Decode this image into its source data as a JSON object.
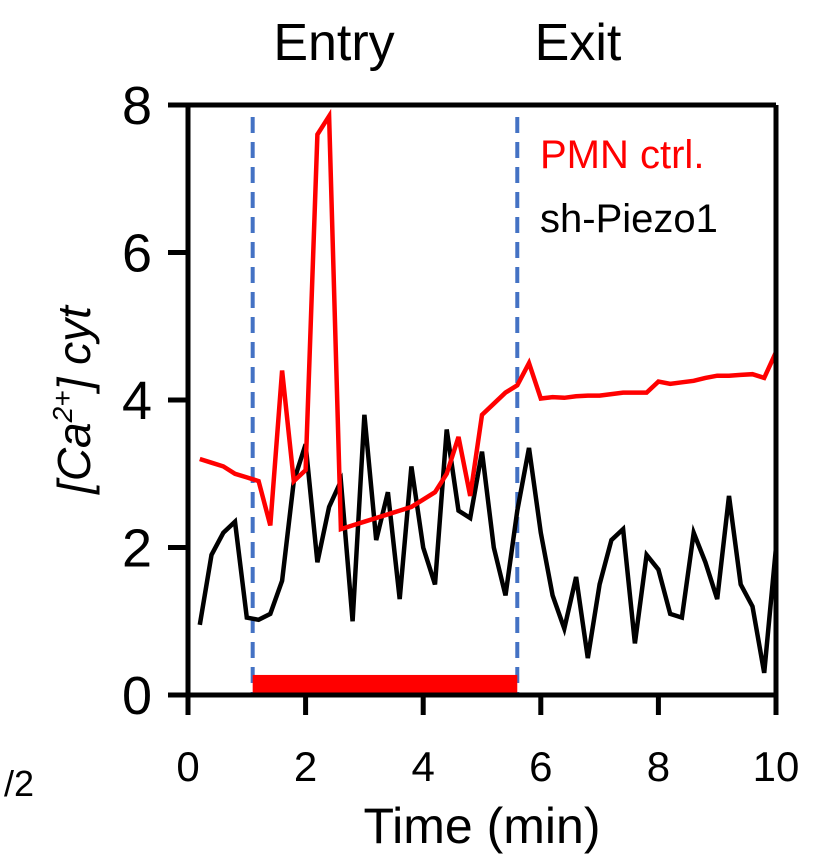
{
  "chart_data": {
    "type": "line",
    "xlabel": "Time (min)",
    "ylabel": {
      "open": "[Ca",
      "sup": "2+",
      "close": "] cyt"
    },
    "xlim": [
      0,
      10
    ],
    "ylim": [
      0,
      8
    ],
    "x_ticks": [
      "0",
      "2",
      "4",
      "6",
      "8",
      "10"
    ],
    "y_ticks": [
      "0",
      "2",
      "4",
      "6",
      "8"
    ],
    "grid": false,
    "legend_position": "top-right",
    "annotations": {
      "entry": {
        "label": "Entry",
        "x": 1.1
      },
      "exit": {
        "label": "Exit",
        "x": 5.6
      }
    },
    "highlight_bar": {
      "from": 1.1,
      "to": 5.6,
      "y": 0.15,
      "color": "#ff0000"
    },
    "partial_text": "/2",
    "series": [
      {
        "name": "PMN ctrl.",
        "color": "#ff0000",
        "x": [
          0.2,
          0.4,
          0.6,
          0.8,
          1.0,
          1.2,
          1.4,
          1.6,
          1.8,
          2.0,
          2.2,
          2.4,
          2.6,
          2.8,
          3.0,
          3.2,
          3.4,
          3.6,
          3.8,
          4.0,
          4.2,
          4.4,
          4.6,
          4.8,
          5.0,
          5.2,
          5.4,
          5.6,
          5.8,
          6.0,
          6.2,
          6.4,
          6.6,
          6.8,
          7.0,
          7.2,
          7.4,
          7.6,
          7.8,
          8.0,
          8.2,
          8.4,
          8.6,
          8.8,
          9.0,
          9.2,
          9.4,
          9.6,
          9.8,
          10.0
        ],
        "y": [
          3.2,
          3.15,
          3.1,
          3.0,
          2.95,
          2.9,
          2.3,
          4.4,
          2.9,
          3.05,
          7.6,
          7.85,
          2.25,
          2.3,
          2.35,
          2.4,
          2.45,
          2.5,
          2.55,
          2.65,
          2.75,
          3.0,
          3.5,
          2.7,
          3.8,
          3.95,
          4.1,
          4.2,
          4.5,
          4.02,
          4.04,
          4.03,
          4.05,
          4.06,
          4.06,
          4.08,
          4.1,
          4.1,
          4.1,
          4.25,
          4.22,
          4.24,
          4.26,
          4.3,
          4.33,
          4.33,
          4.34,
          4.35,
          4.3,
          4.65
        ]
      },
      {
        "name": "sh-Piezo1",
        "color": "#000000",
        "x": [
          0.2,
          0.4,
          0.6,
          0.8,
          1.0,
          1.2,
          1.4,
          1.6,
          1.8,
          2.0,
          2.2,
          2.4,
          2.6,
          2.8,
          3.0,
          3.2,
          3.4,
          3.6,
          3.8,
          4.0,
          4.2,
          4.4,
          4.6,
          4.8,
          5.0,
          5.2,
          5.4,
          5.6,
          5.8,
          6.0,
          6.2,
          6.4,
          6.6,
          6.8,
          7.0,
          7.2,
          7.4,
          7.6,
          7.8,
          8.0,
          8.2,
          8.4,
          8.6,
          8.8,
          9.0,
          9.2,
          9.4,
          9.6,
          9.8,
          10.0
        ],
        "y": [
          0.95,
          1.9,
          2.2,
          2.35,
          1.05,
          1.02,
          1.1,
          1.55,
          2.9,
          3.4,
          1.8,
          2.55,
          2.9,
          1.0,
          3.8,
          2.1,
          2.75,
          1.3,
          3.1,
          2.0,
          1.5,
          3.6,
          2.5,
          2.4,
          3.3,
          2.0,
          1.35,
          2.5,
          3.35,
          2.2,
          1.35,
          0.9,
          1.6,
          0.5,
          1.5,
          2.1,
          2.25,
          0.7,
          1.9,
          1.7,
          1.1,
          1.05,
          2.2,
          1.8,
          1.3,
          2.7,
          1.5,
          1.2,
          0.3,
          2.0
        ]
      }
    ]
  }
}
